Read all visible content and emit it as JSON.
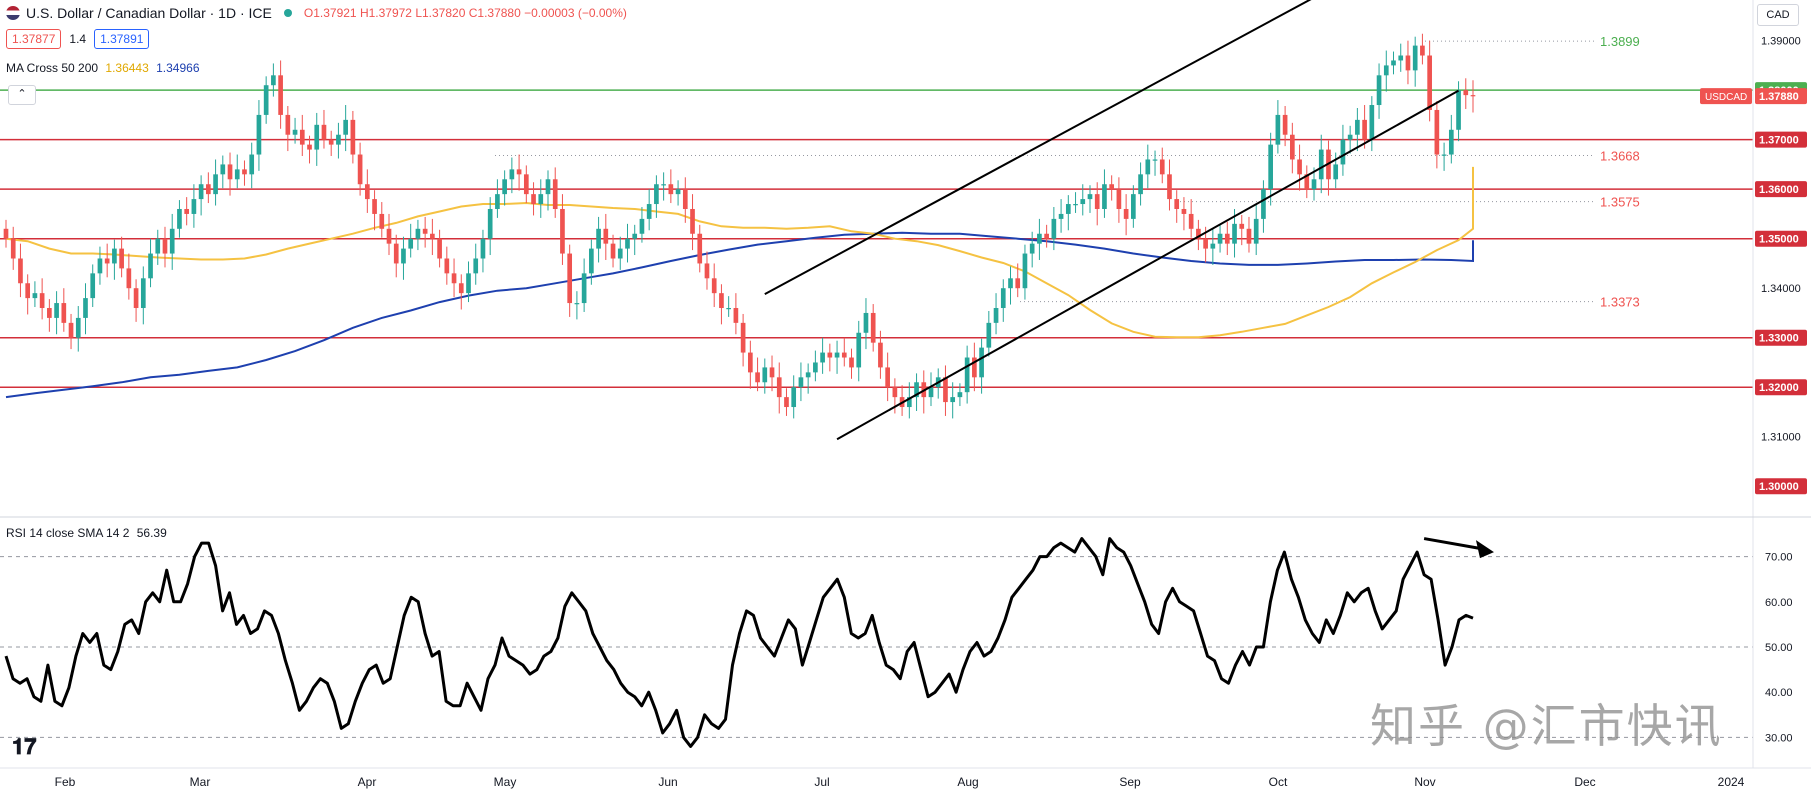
{
  "header": {
    "symbol": "U.S. Dollar / Canadian Dollar · 1D · ICE",
    "open": "O1.37921",
    "high": "H1.37972",
    "low": "L1.37820",
    "close": "C1.37880",
    "change": "−0.00003 (−0.00%)",
    "bid": "1.37877",
    "spread": "1.4",
    "ask": "1.37891",
    "ma_label": "MA Cross 50 200",
    "ma50_value": "1.36443",
    "ma200_value": "1.34966",
    "currency": "CAD",
    "collapse_icon": "chevron-up-icon"
  },
  "rsi_header": {
    "label": "RSI 14 close SMA 14 2",
    "value": "56.39"
  },
  "watermark": "知乎 @汇市快讯",
  "logo": "TV",
  "colors": {
    "bull": "#26a69a",
    "bear": "#ef5350",
    "ma50": "#f5c242",
    "ma200": "#1e40af",
    "hline": "#d32f3a",
    "green_line": "#4caf50",
    "rsi": "#000000"
  },
  "chart_data": [
    {
      "type": "candlestick",
      "title": "U.S. Dollar / Canadian Dollar · 1D · ICE",
      "ylim": [
        1.295,
        1.397
      ],
      "y_ticks": [
        "1.39000",
        "1.38000",
        "1.37000",
        "1.36000",
        "1.35000",
        "1.34000",
        "1.33000",
        "1.32000",
        "1.31000",
        "1.30000"
      ],
      "x_ticks": [
        "Feb",
        "Mar",
        "Apr",
        "May",
        "Jun",
        "Jul",
        "Aug",
        "Sep",
        "Oct",
        "Nov",
        "Dec",
        "2024"
      ],
      "price_labels": [
        {
          "text": "1.38000",
          "color": "#4caf50"
        },
        {
          "text": "USDCAD",
          "color": "#ef5350"
        },
        {
          "text": "1.37880",
          "color": "#ef5350"
        },
        {
          "text": "1.37000",
          "color": "#d32f3a"
        },
        {
          "text": "1.36000",
          "color": "#d32f3a"
        },
        {
          "text": "1.35000",
          "color": "#d32f3a"
        },
        {
          "text": "1.33000",
          "color": "#d32f3a"
        },
        {
          "text": "1.32000",
          "color": "#d32f3a"
        },
        {
          "text": "1.30000",
          "color": "#d32f3a"
        }
      ],
      "horizontal_levels": [
        1.38,
        1.37,
        1.36,
        1.35,
        1.33,
        1.32
      ],
      "annotated_levels": [
        {
          "label": "1.3899",
          "value": 1.3899,
          "color": "#4caf50"
        },
        {
          "label": "1.3668",
          "value": 1.3668,
          "color": "#ef5350"
        },
        {
          "label": "1.3575",
          "value": 1.3575,
          "color": "#ef5350"
        },
        {
          "label": "1.3373",
          "value": 1.3373,
          "color": "#ef5350"
        }
      ],
      "closes": [
        1.35,
        1.346,
        1.341,
        1.338,
        1.339,
        1.336,
        1.334,
        1.337,
        1.333,
        1.33,
        1.334,
        1.338,
        1.343,
        1.346,
        1.345,
        1.348,
        1.344,
        1.34,
        1.336,
        1.342,
        1.347,
        1.35,
        1.347,
        1.352,
        1.356,
        1.355,
        1.358,
        1.361,
        1.359,
        1.363,
        1.365,
        1.362,
        1.364,
        1.363,
        1.367,
        1.375,
        1.381,
        1.383,
        1.375,
        1.371,
        1.372,
        1.369,
        1.368,
        1.373,
        1.37,
        1.369,
        1.371,
        1.374,
        1.367,
        1.361,
        1.358,
        1.355,
        1.352,
        1.349,
        1.345,
        1.348,
        1.35,
        1.352,
        1.351,
        1.35,
        1.346,
        1.343,
        1.341,
        1.339,
        1.343,
        1.346,
        1.35,
        1.356,
        1.359,
        1.362,
        1.364,
        1.363,
        1.359,
        1.357,
        1.359,
        1.362,
        1.356,
        1.347,
        1.337,
        1.337,
        1.343,
        1.348,
        1.352,
        1.349,
        1.346,
        1.348,
        1.35,
        1.351,
        1.354,
        1.357,
        1.361,
        1.361,
        1.359,
        1.36,
        1.356,
        1.351,
        1.345,
        1.342,
        1.339,
        1.336,
        1.336,
        1.333,
        1.327,
        1.323,
        1.321,
        1.324,
        1.322,
        1.318,
        1.316,
        1.32,
        1.322,
        1.323,
        1.325,
        1.327,
        1.326,
        1.327,
        1.326,
        1.324,
        1.331,
        1.335,
        1.329,
        1.324,
        1.32,
        1.318,
        1.316,
        1.318,
        1.321,
        1.318,
        1.32,
        1.322,
        1.317,
        1.318,
        1.319,
        1.326,
        1.322,
        1.328,
        1.333,
        1.336,
        1.34,
        1.342,
        1.34,
        1.347,
        1.349,
        1.351,
        1.35,
        1.354,
        1.355,
        1.357,
        1.357,
        1.358,
        1.359,
        1.356,
        1.361,
        1.36,
        1.356,
        1.354,
        1.359,
        1.363,
        1.366,
        1.366,
        1.363,
        1.358,
        1.356,
        1.355,
        1.352,
        1.35,
        1.348,
        1.349,
        1.351,
        1.349,
        1.353,
        1.352,
        1.349,
        1.354,
        1.36,
        1.369,
        1.375,
        1.371,
        1.366,
        1.363,
        1.36,
        1.362,
        1.368,
        1.362,
        1.365,
        1.37,
        1.371,
        1.374,
        1.37,
        1.377,
        1.383,
        1.385,
        1.386,
        1.387,
        1.384,
        1.389,
        1.387,
        1.376,
        1.367,
        1.367,
        1.372,
        1.38,
        1.379,
        1.3788
      ],
      "ma50": [
        1.35,
        1.3495,
        1.348,
        1.347,
        1.347,
        1.3468,
        1.3465,
        1.3462,
        1.346,
        1.3458,
        1.3458,
        1.346,
        1.3468,
        1.348,
        1.349,
        1.35,
        1.351,
        1.3522,
        1.3532,
        1.3545,
        1.3555,
        1.3565,
        1.357,
        1.357,
        1.3572,
        1.3568,
        1.3568,
        1.3565,
        1.3562,
        1.356,
        1.3555,
        1.355,
        1.3535,
        1.3525,
        1.3522,
        1.3522,
        1.352,
        1.3522,
        1.3525,
        1.3515,
        1.351,
        1.35,
        1.3495,
        1.3487,
        1.3475,
        1.3462,
        1.3451,
        1.3434,
        1.341,
        1.3386,
        1.3356,
        1.3329,
        1.3312,
        1.3302,
        1.3301,
        1.3301,
        1.3305,
        1.3312,
        1.332,
        1.3328,
        1.3345,
        1.3362,
        1.3382,
        1.341,
        1.3432,
        1.3453,
        1.3477,
        1.3497,
        1.352,
        1.354,
        1.356,
        1.3573,
        1.3589,
        1.3602,
        1.3615,
        1.3627,
        1.3637,
        1.3645
      ],
      "ma50_start_index": 0,
      "ma50_step": 3,
      "ma200": [
        1.318,
        1.3188,
        1.3195,
        1.3202,
        1.321,
        1.322,
        1.3225,
        1.3233,
        1.324,
        1.3255,
        1.3273,
        1.3295,
        1.332,
        1.334,
        1.3355,
        1.3372,
        1.3385,
        1.3395,
        1.34,
        1.341,
        1.342,
        1.343,
        1.3442,
        1.3455,
        1.3467,
        1.3478,
        1.3488,
        1.3495,
        1.3502,
        1.3508,
        1.351,
        1.3512,
        1.351,
        1.351,
        1.3505,
        1.35,
        1.3495,
        1.3488,
        1.348,
        1.347,
        1.3462,
        1.3455,
        1.345,
        1.3447,
        1.3447,
        1.345,
        1.3454,
        1.3457,
        1.3457,
        1.3458,
        1.3457,
        1.3455,
        1.3455,
        1.3455,
        1.3457,
        1.346,
        1.3465,
        1.3477,
        1.3487,
        1.3497
      ],
      "ma200_step": 4,
      "channel": [
        {
          "from": [
            115,
            1.3095
          ],
          "to": [
            201,
            1.3799
          ]
        },
        {
          "from": [
            105,
            1.3388
          ],
          "to": [
            182,
            1.3995
          ]
        }
      ]
    },
    {
      "type": "line",
      "title": "RSI 14 close SMA 14 2",
      "ylim": [
        25,
        77
      ],
      "y_ticks": [
        "70.00",
        "60.00",
        "50.00",
        "40.00",
        "30.00"
      ],
      "reference_levels": [
        70,
        50,
        30
      ],
      "values": [
        48,
        43,
        42,
        43,
        39,
        38,
        46,
        38,
        37,
        41,
        48,
        53,
        51,
        53,
        46,
        45,
        49,
        55,
        56,
        53,
        60,
        62,
        60,
        67,
        60,
        60,
        64,
        70,
        73,
        73,
        68,
        58,
        62,
        55,
        57,
        53,
        54,
        58,
        57,
        53,
        47,
        42,
        36,
        38,
        41,
        43,
        42,
        38,
        32,
        33,
        38,
        42,
        45,
        46,
        42,
        43,
        50,
        57,
        61,
        60,
        53,
        48,
        49,
        38,
        37,
        37,
        42,
        39,
        36,
        43,
        46,
        52,
        48,
        47,
        46,
        44,
        45,
        48,
        49,
        52,
        59,
        62,
        60,
        58,
        53,
        50,
        47,
        45,
        42,
        40,
        39,
        37,
        40,
        36,
        31,
        33,
        36,
        30,
        28,
        30,
        35,
        33,
        32,
        34,
        46,
        53,
        58,
        57,
        52,
        50,
        48,
        52,
        56,
        54,
        46,
        51,
        56,
        61,
        63,
        65,
        61,
        53,
        52,
        53,
        57,
        51,
        46,
        45,
        43,
        49,
        51,
        45,
        39,
        40,
        42,
        44,
        40,
        45,
        49,
        51,
        48,
        49,
        52,
        56,
        61,
        63,
        65,
        67,
        70,
        70,
        72,
        73,
        72,
        71,
        74,
        72,
        70,
        66,
        74,
        72,
        71,
        68,
        64,
        60,
        55,
        53,
        60,
        63,
        60,
        59,
        58,
        53,
        48,
        47,
        43,
        42,
        46,
        49,
        46,
        50,
        50,
        60,
        67,
        71,
        65,
        61,
        56,
        53,
        51,
        56,
        53,
        57,
        62,
        60,
        62,
        63,
        58,
        54,
        56,
        58,
        65,
        68,
        71,
        66,
        65,
        56,
        46,
        50,
        56,
        57,
        56.39
      ],
      "arrow": {
        "from": [
          203,
          74
        ],
        "to": [
          213,
          71
        ]
      }
    }
  ]
}
